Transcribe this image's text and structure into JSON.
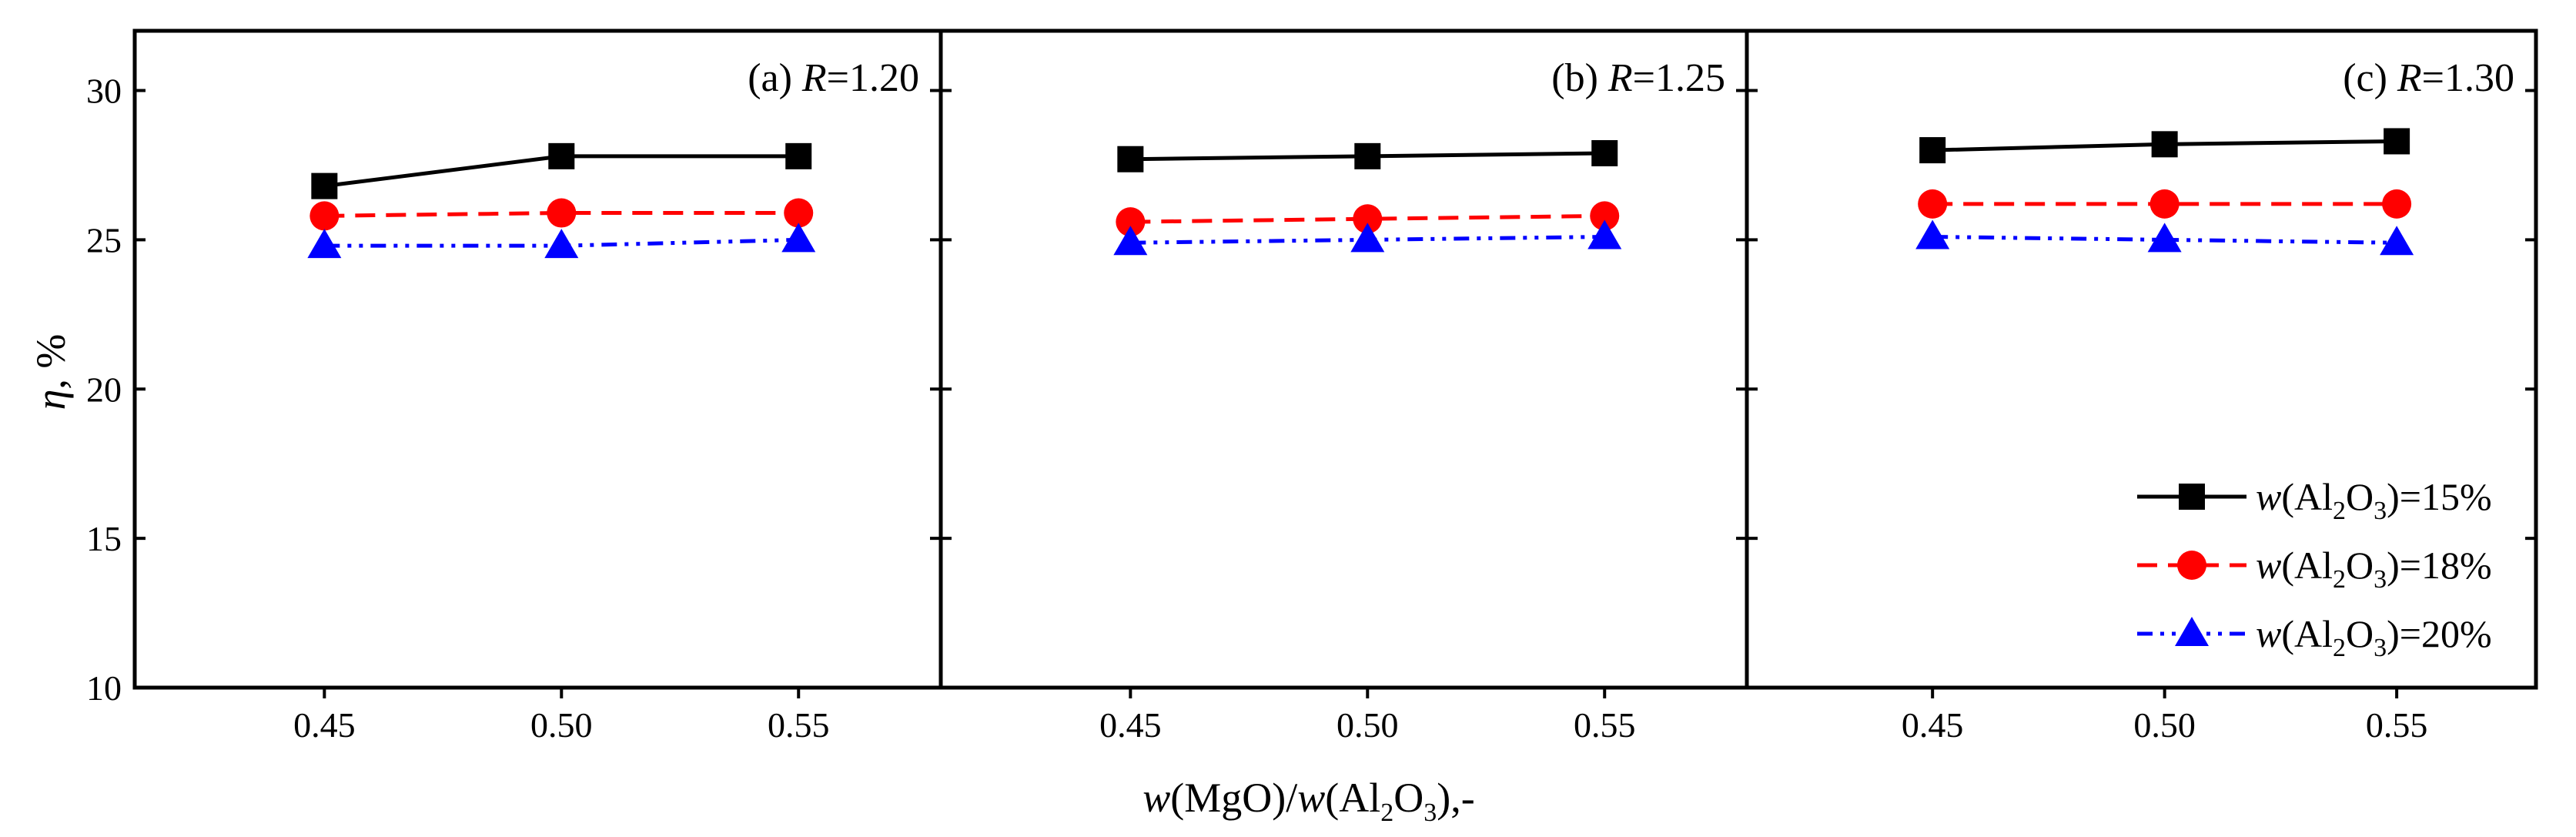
{
  "chart_data": [
    {
      "type": "line",
      "panel_label": "(a)",
      "param_symbol": "R",
      "param_value": "=1.20",
      "x": [
        0.45,
        0.5,
        0.55
      ],
      "series": [
        {
          "name": "w(Al2O3)=15%",
          "values": [
            26.8,
            27.8,
            27.8
          ]
        },
        {
          "name": "w(Al2O3)=18%",
          "values": [
            25.8,
            25.9,
            25.9
          ]
        },
        {
          "name": "w(Al2O3)=20%",
          "values": [
            24.8,
            24.8,
            25.0
          ]
        }
      ]
    },
    {
      "type": "line",
      "panel_label": "(b)",
      "param_symbol": "R",
      "param_value": "=1.25",
      "x": [
        0.45,
        0.5,
        0.55
      ],
      "series": [
        {
          "name": "w(Al2O3)=15%",
          "values": [
            27.7,
            27.8,
            27.9
          ]
        },
        {
          "name": "w(Al2O3)=18%",
          "values": [
            25.6,
            25.7,
            25.8
          ]
        },
        {
          "name": "w(Al2O3)=20%",
          "values": [
            24.9,
            25.0,
            25.1
          ]
        }
      ]
    },
    {
      "type": "line",
      "panel_label": "(c)",
      "param_symbol": "R",
      "param_value": "=1.30",
      "x": [
        0.45,
        0.5,
        0.55
      ],
      "series": [
        {
          "name": "w(Al2O3)=15%",
          "values": [
            28.0,
            28.2,
            28.3
          ]
        },
        {
          "name": "w(Al2O3)=18%",
          "values": [
            26.2,
            26.2,
            26.2
          ]
        },
        {
          "name": "w(Al2O3)=20%",
          "values": [
            25.1,
            25.0,
            24.9
          ]
        }
      ]
    }
  ],
  "axes": {
    "ylabel_symbol": "η",
    "ylabel_unit": ", %",
    "yticks": [
      "10",
      "15",
      "20",
      "25",
      "30"
    ],
    "xticks": [
      "0.45",
      "0.50",
      "0.55"
    ],
    "xlim": [
      0.41,
      0.58
    ],
    "ylim": [
      10,
      32
    ],
    "xlabel": {
      "w1": "w",
      "p1": "(MgO)/",
      "w2": "w",
      "p2": "(Al",
      "s1": "2",
      "p3": "O",
      "s2": "3",
      "p4": "),-"
    }
  },
  "legend": {
    "position": "bottom-right of panel (c)",
    "items": [
      {
        "marker": "square",
        "color": "#000000",
        "dash": "solid",
        "w": "w",
        "a": "(Al",
        "s1": "2",
        "b": "O",
        "s2": "3",
        "c": ")=15%"
      },
      {
        "marker": "circle",
        "color": "#ff0000",
        "dash": "dashed",
        "w": "w",
        "a": "(Al",
        "s1": "2",
        "b": "O",
        "s2": "3",
        "c": ")=18%"
      },
      {
        "marker": "triangle",
        "color": "#0000ff",
        "dash": "dash-dot-dot",
        "w": "w",
        "a": "(Al",
        "s1": "2",
        "b": "O",
        "s2": "3",
        "c": ")=20%"
      }
    ]
  },
  "styles": {
    "colors": [
      "#000000",
      "#ff0000",
      "#0000ff"
    ],
    "markers": [
      "square",
      "circle",
      "triangle"
    ],
    "dashes": [
      "solid",
      "dashed",
      "dash-dot-dot"
    ]
  }
}
